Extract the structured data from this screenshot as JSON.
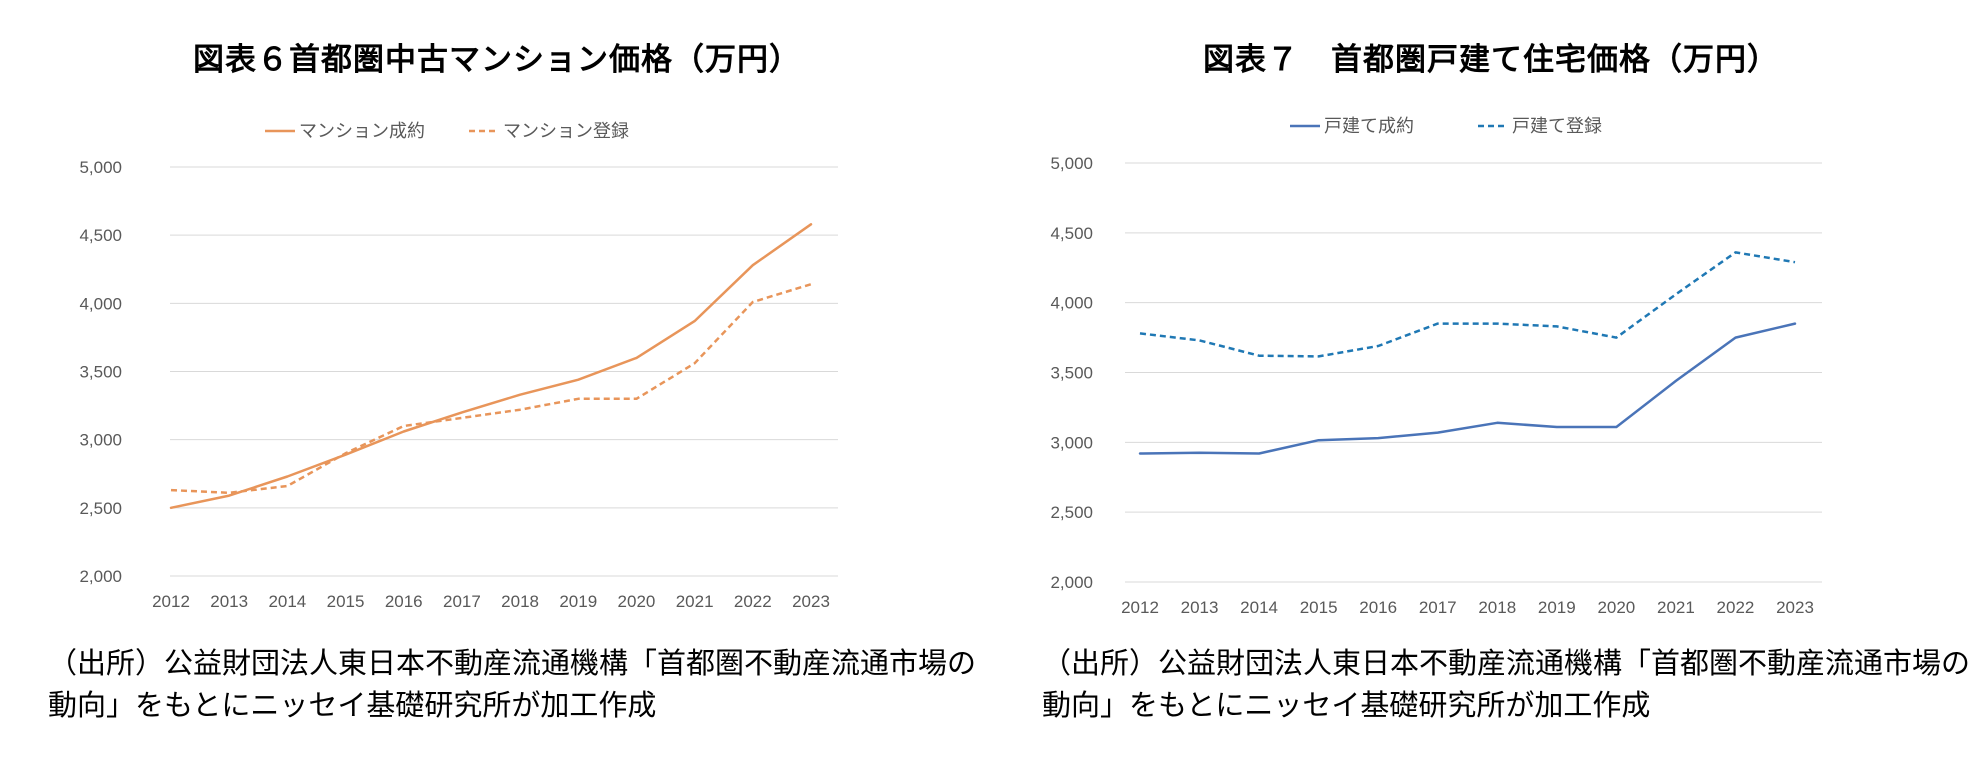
{
  "chart_data": [
    {
      "type": "line",
      "title": "図表６首都圏中古マンション価格（万円）",
      "categories": [
        "2012",
        "2013",
        "2014",
        "2015",
        "2016",
        "2017",
        "2018",
        "2019",
        "2020",
        "2021",
        "2022",
        "2023"
      ],
      "ylim": [
        2000,
        5000
      ],
      "yticks": [
        "2,000",
        "2,500",
        "3,000",
        "3,500",
        "4,000",
        "4,500",
        "5,000"
      ],
      "grid": true,
      "legend_position": "top",
      "series": [
        {
          "name": "マンション成約",
          "style": "solid",
          "color": "#E8955A",
          "values": [
            2500,
            2590,
            2730,
            2890,
            3060,
            3200,
            3330,
            3440,
            3600,
            3870,
            4280,
            4580
          ]
        },
        {
          "name": "マンション登録",
          "style": "dashed",
          "color": "#E8955A",
          "values": [
            2630,
            2610,
            2660,
            2900,
            3100,
            3160,
            3220,
            3300,
            3300,
            3560,
            4010,
            4140
          ]
        }
      ],
      "source": "（出所）公益財団法人東日本不動産流通機構「首都圏不動産流通市場の動向」をもとにニッセイ基礎研究所が加工作成"
    },
    {
      "type": "line",
      "title": "図表７　首都圏戸建て住宅価格（万円）",
      "categories": [
        "2012",
        "2013",
        "2014",
        "2015",
        "2016",
        "2017",
        "2018",
        "2019",
        "2020",
        "2021",
        "2022",
        "2023"
      ],
      "ylim": [
        2000,
        5000
      ],
      "yticks": [
        "2,000",
        "2,500",
        "3,000",
        "3,500",
        "4,000",
        "4,500",
        "5,000"
      ],
      "grid": true,
      "legend_position": "top",
      "series": [
        {
          "name": "戸建て成約",
          "style": "solid",
          "color": "#4A74B8",
          "values": [
            2920,
            2925,
            2920,
            3015,
            3030,
            3070,
            3140,
            3110,
            3110,
            3440,
            3750,
            3850
          ]
        },
        {
          "name": "戸建て登録",
          "style": "dashed",
          "color": "#1F78B4",
          "values": [
            3780,
            3730,
            3620,
            3615,
            3690,
            3850,
            3850,
            3830,
            3750,
            4060,
            4360,
            4290
          ]
        }
      ],
      "source": "（出所）公益財団法人東日本不動産流通機構「首都圏不動産流通市場の動向」をもとにニッセイ基礎研究所が加工作成"
    }
  ]
}
